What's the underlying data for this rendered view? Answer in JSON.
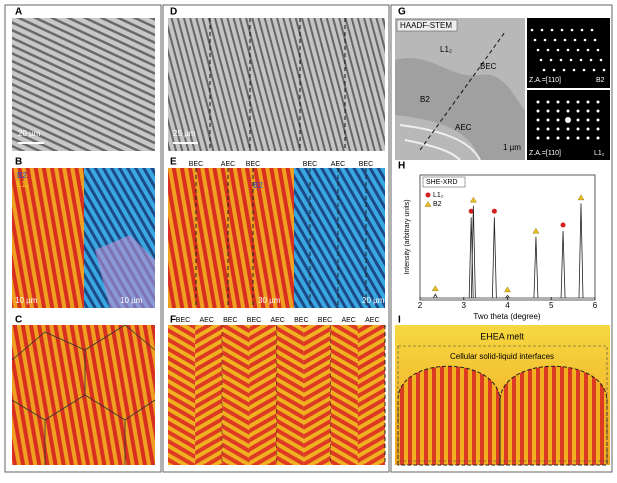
{
  "panels": {
    "A": {
      "label": "A",
      "scale_bar": "20 µm"
    },
    "B": {
      "label": "B",
      "legend": [
        "B2",
        "L1₂"
      ],
      "scale_bars": [
        "10 µm",
        "10 µm"
      ]
    },
    "C": {
      "label": "C"
    },
    "D": {
      "label": "D",
      "scale_bar": "25 µm"
    },
    "E": {
      "label": "E",
      "regions": [
        "BEC",
        "AEC",
        "BEC",
        "BEC",
        "AEC",
        "BEC"
      ],
      "phase": "B2",
      "scale_bars": [
        "30 µm",
        "20 µm"
      ]
    },
    "F": {
      "label": "F",
      "regions": [
        "BEC",
        "AEC",
        "BEC",
        "BEC",
        "AEC",
        "BEC",
        "BEC",
        "AEC",
        "AEC"
      ]
    },
    "G": {
      "label": "G",
      "title": "HAADF-STEM",
      "phases": [
        "L1₂",
        "BEC",
        "B2",
        "AEC"
      ],
      "scale_bar": "1 µm",
      "diffraction": [
        {
          "zone_axis": "Z.A.=[110]",
          "phase": "B2"
        },
        {
          "zone_axis": "Z.A.=[110]",
          "phase": "L1₂"
        }
      ]
    },
    "H": {
      "label": "H",
      "title": "SHE-XRD",
      "xlabel": "Two theta (degree)",
      "ylabel": "Intensity (arbitrary units)",
      "xlim": [
        2,
        6
      ],
      "xticks": [
        2,
        3,
        4,
        5,
        6
      ],
      "ylim": [
        0,
        1
      ],
      "series": [
        {
          "name": "L1₂",
          "marker": "circle",
          "color": "#d42020",
          "x": [
            3.17,
            3.7,
            5.27
          ],
          "heights": [
            0.72,
            0.72,
            0.6
          ]
        },
        {
          "name": "B2",
          "marker": "triangle",
          "color": "#e8c020",
          "x": [
            2.35,
            3.22,
            4.0,
            4.65,
            5.68
          ],
          "heights": [
            0.05,
            0.82,
            0.04,
            0.55,
            0.84
          ]
        }
      ]
    },
    "I": {
      "label": "I",
      "zones": [
        "EHEA melt",
        "Cellular solid-liquid interfaces"
      ]
    }
  }
}
